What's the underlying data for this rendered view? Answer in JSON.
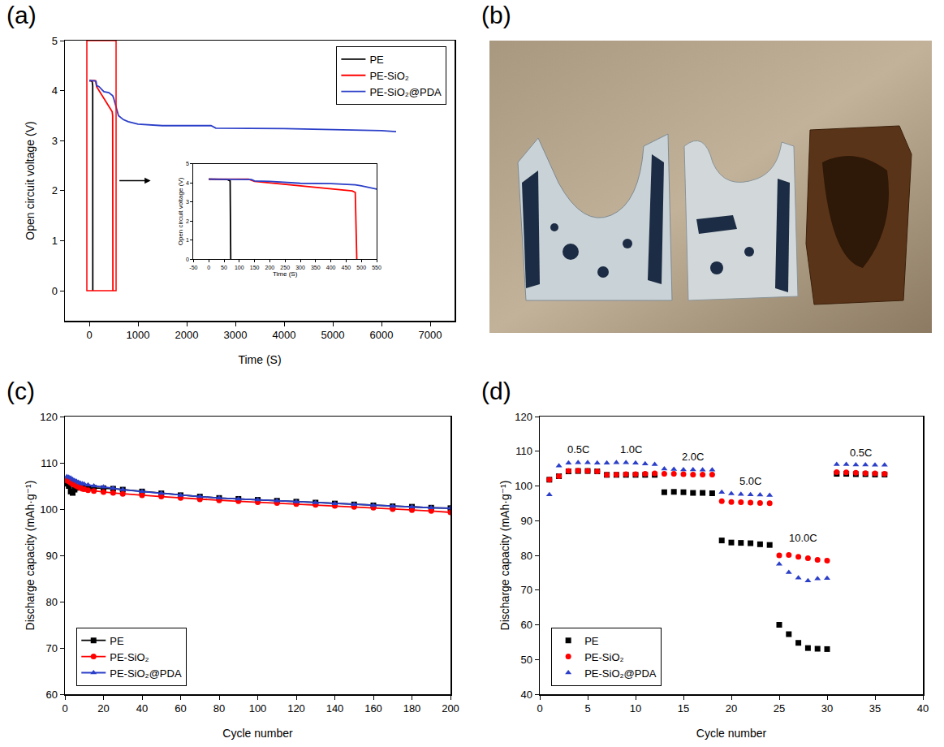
{
  "chart_data": [
    {
      "panel": "(a)",
      "type": "line",
      "x_label": "Time (S)",
      "y_label": "Open circuit voltage (V)",
      "xlim": [
        -500,
        7500
      ],
      "xticks": [
        0,
        1000,
        2000,
        3000,
        4000,
        5000,
        6000,
        7000
      ],
      "ylim": [
        -0.6,
        5
      ],
      "yticks": [
        0,
        1,
        2,
        3,
        4,
        5
      ],
      "grid": false,
      "legend": "upper right",
      "series": [
        {
          "name": "PE",
          "color": "#000000",
          "marker": "none",
          "line_style": "solid",
          "x": [
            0,
            30,
            60,
            70,
            72
          ],
          "values": [
            4.2,
            4.2,
            4.18,
            4.1,
            0
          ]
        },
        {
          "name": "PE-SiO₂",
          "color": "#ff0000",
          "marker": "none",
          "line_style": "solid",
          "x": [
            0,
            100,
            130,
            150,
            200,
            300,
            400,
            470,
            480,
            485
          ],
          "values": [
            4.2,
            4.2,
            4.2,
            4.08,
            4.0,
            3.85,
            3.7,
            3.58,
            3.5,
            0
          ]
        },
        {
          "name": "PE-SiO₂@PDA",
          "color": "#2b3fc8",
          "marker": "none",
          "line_style": "solid",
          "x": [
            0,
            100,
            140,
            150,
            200,
            280,
            300,
            400,
            480,
            500,
            600,
            700,
            800,
            1000,
            1500,
            2000,
            2500,
            2600,
            3000,
            4000,
            5000,
            6000,
            6300
          ],
          "values": [
            4.2,
            4.2,
            4.18,
            4.1,
            4.08,
            4.0,
            3.98,
            3.96,
            3.9,
            3.85,
            3.5,
            3.42,
            3.38,
            3.33,
            3.3,
            3.3,
            3.3,
            3.25,
            3.25,
            3.24,
            3.22,
            3.2,
            3.18
          ]
        }
      ],
      "inset": {
        "x_label": "Time (S)",
        "y_label": "Open circuit voltage (V)",
        "xlim": [
          -50,
          550
        ],
        "xticks": [
          -50,
          0,
          50,
          100,
          150,
          200,
          250,
          300,
          350,
          400,
          450,
          500,
          550
        ],
        "ylim": [
          0,
          5
        ],
        "yticks": [
          0,
          1,
          2,
          3,
          4,
          5
        ]
      }
    },
    {
      "panel": "(b)",
      "type": "image"
    },
    {
      "panel": "(c)",
      "type": "line",
      "x_label": "Cycle number",
      "y_label": "Discharge capacity (mAh·g⁻¹)",
      "xlim": [
        0,
        200
      ],
      "xticks": [
        0,
        20,
        40,
        60,
        80,
        100,
        120,
        140,
        160,
        180,
        200
      ],
      "ylim": [
        60,
        120
      ],
      "yticks": [
        60,
        70,
        80,
        90,
        100,
        110,
        120
      ],
      "grid": false,
      "legend": "lower left",
      "x": [
        1,
        2,
        3,
        4,
        5,
        6,
        7,
        8,
        9,
        10,
        12,
        15,
        20,
        25,
        30,
        40,
        50,
        60,
        70,
        80,
        90,
        100,
        110,
        120,
        130,
        140,
        150,
        160,
        170,
        180,
        190,
        200
      ],
      "series": [
        {
          "name": "PE",
          "color": "#000000",
          "marker": "square",
          "line_style": "solid",
          "values": [
            105.5,
            105.0,
            103.8,
            103.5,
            104.2,
            104.6,
            104.8,
            104.7,
            104.7,
            104.6,
            104.6,
            104.6,
            104.5,
            104.4,
            104.2,
            103.8,
            103.4,
            103.0,
            102.7,
            102.4,
            102.2,
            102.0,
            101.8,
            101.6,
            101.4,
            101.2,
            101.0,
            100.8,
            100.6,
            100.5,
            100.3,
            100.2
          ]
        },
        {
          "name": "PE-SiO₂",
          "color": "#ff0000",
          "marker": "circle",
          "line_style": "solid",
          "values": [
            106.2,
            106.0,
            105.7,
            105.4,
            105.2,
            105.0,
            104.8,
            104.6,
            104.4,
            104.3,
            104.1,
            103.9,
            103.7,
            103.5,
            103.3,
            103.0,
            102.7,
            102.4,
            102.1,
            101.9,
            101.7,
            101.5,
            101.3,
            101.1,
            100.9,
            100.7,
            100.5,
            100.3,
            100.0,
            99.8,
            99.6,
            99.3
          ]
        },
        {
          "name": "PE-SiO₂@PDA",
          "color": "#2b3fc8",
          "marker": "triangle-up",
          "line_style": "solid",
          "values": [
            107.0,
            106.9,
            106.7,
            106.4,
            106.2,
            106.0,
            105.8,
            105.6,
            105.5,
            105.4,
            105.2,
            105.0,
            104.8,
            104.5,
            104.2,
            103.8,
            103.4,
            103.0,
            102.7,
            102.4,
            102.2,
            102.0,
            101.8,
            101.6,
            101.4,
            101.2,
            101.0,
            100.8,
            100.6,
            100.5,
            100.3,
            100.2
          ]
        }
      ]
    },
    {
      "panel": "(d)",
      "type": "scatter",
      "x_label": "Cycle number",
      "y_label": "Discharge capacity (mAh·g⁻¹)",
      "xlim": [
        0,
        40
      ],
      "xticks": [
        0,
        5,
        10,
        15,
        20,
        25,
        30,
        35,
        40
      ],
      "ylim": [
        40,
        120
      ],
      "yticks": [
        40,
        50,
        60,
        70,
        80,
        90,
        100,
        110,
        120
      ],
      "grid": false,
      "legend": "lower left",
      "x": [
        1,
        2,
        3,
        4,
        5,
        6,
        7,
        8,
        9,
        10,
        11,
        12,
        13,
        14,
        15,
        16,
        17,
        18,
        19,
        20,
        21,
        22,
        23,
        24,
        25,
        26,
        27,
        28,
        29,
        30,
        31,
        32,
        33,
        34,
        35,
        36
      ],
      "series": [
        {
          "name": "PE",
          "color": "#000000",
          "marker": "square",
          "line_style": "none",
          "values": [
            101.8,
            102.8,
            104.2,
            104.3,
            104.3,
            104.2,
            103.2,
            103.2,
            103.2,
            103.2,
            103.2,
            103.2,
            98.2,
            98.3,
            98.2,
            98.0,
            98.0,
            97.9,
            84.3,
            83.7,
            83.6,
            83.5,
            83.2,
            83.0,
            60.0,
            57.3,
            54.8,
            53.3,
            53.1,
            53.0,
            103.5,
            103.5,
            103.4,
            103.4,
            103.3,
            103.3
          ]
        },
        {
          "name": "PE-SiO₂",
          "color": "#ff0000",
          "marker": "circle",
          "line_style": "none",
          "values": [
            101.8,
            102.8,
            104.3,
            104.4,
            104.3,
            104.2,
            103.2,
            103.3,
            103.4,
            103.4,
            103.5,
            103.6,
            103.5,
            103.5,
            103.4,
            103.3,
            103.3,
            103.3,
            95.6,
            95.4,
            95.3,
            95.2,
            95.1,
            95.0,
            80.0,
            80.1,
            79.6,
            79.2,
            78.7,
            78.5,
            104.0,
            103.9,
            103.8,
            103.7,
            103.6,
            103.5
          ]
        },
        {
          "name": "PE-SiO₂@PDA",
          "color": "#2b3fc8",
          "marker": "triangle-up",
          "line_style": "none",
          "values": [
            97.5,
            105.8,
            106.6,
            106.7,
            106.7,
            106.6,
            106.6,
            106.7,
            106.7,
            106.6,
            106.4,
            106.2,
            104.9,
            104.8,
            104.7,
            104.7,
            104.6,
            104.6,
            98.2,
            97.8,
            97.6,
            97.5,
            97.4,
            97.3,
            77.5,
            75.1,
            73.5,
            72.7,
            73.3,
            73.4,
            106.2,
            106.2,
            106.1,
            106.1,
            106.0,
            106.0
          ]
        }
      ],
      "annotations": [
        {
          "text": "0.5C",
          "x": 4,
          "y": 110.5
        },
        {
          "text": "1.0C",
          "x": 9.5,
          "y": 110.5
        },
        {
          "text": "2.0C",
          "x": 16,
          "y": 108.5
        },
        {
          "text": "5.0C",
          "x": 22,
          "y": 101.5
        },
        {
          "text": "10.0C",
          "x": 27.5,
          "y": 85
        },
        {
          "text": "0.5C",
          "x": 33.5,
          "y": 109.5
        }
      ]
    }
  ]
}
